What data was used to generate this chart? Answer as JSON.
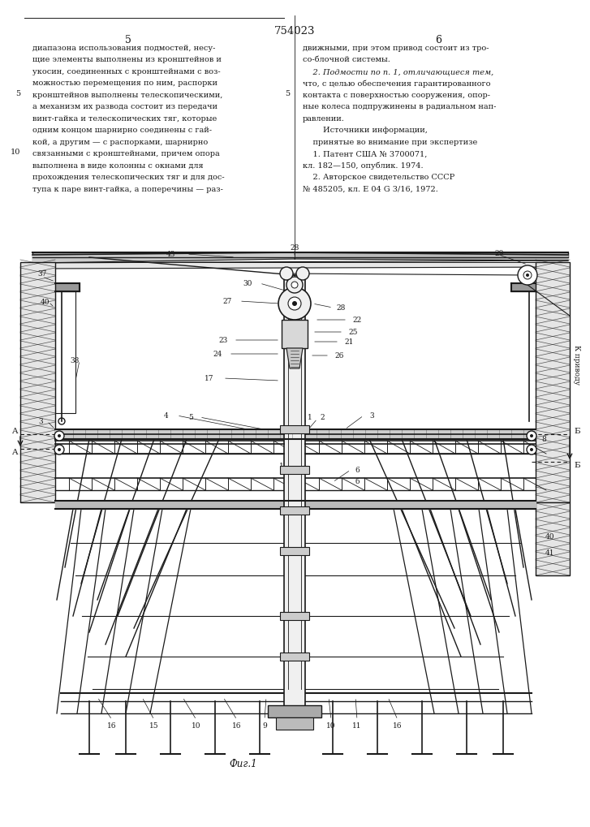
{
  "patent_number": "754023",
  "page_left": "5",
  "page_right": "6",
  "text_left_lines": [
    "диапазона использования подмостей, несу-",
    "щие элементы выполнены из кронштейнов и",
    "укосин, соединенных с кронштейнами с воз-",
    "можностью перемещения по ним, распорки",
    "кронштейнов выполнены телескопическими,",
    "а механизм их развода состоит из передачи",
    "винт-гайка и телескопических тяг, которые",
    "одним концом шарнирно соединены с гай-",
    "кой, а другим — с распорками, шарнирно",
    "связанными с кронштейнами, причем опора",
    "выполнена в виде колонны с окнами для",
    "прохождения телескопических тяг и для дос-",
    "тупа к паре винт-гайка, а поперечины — раз-"
  ],
  "text_right_lines": [
    "движными, при этом привод состоит из тро-",
    "со-блочной системы.",
    "    2. Подмости по п. 1, отличающиеся тем,",
    "что, с целью обеспечения гарантированного",
    "контакта с поверхностью сооружения, опор-",
    "ные колеса подпружинены в радиальном нап-",
    "равлении.",
    "        Источники информации,",
    "    принятые во внимание при экспертизе",
    "    1. Патент США № 3700071,",
    "кл. 182—150, опублик. 1974.",
    "    2. Авторское свидетельство СССР",
    "№ 485205, кл. Е 04 G 3/16, 1972."
  ],
  "fig_label": "Фиг.1",
  "background_color": "#ffffff",
  "line_color": "#1a1a1a",
  "text_color": "#1a1a1a"
}
